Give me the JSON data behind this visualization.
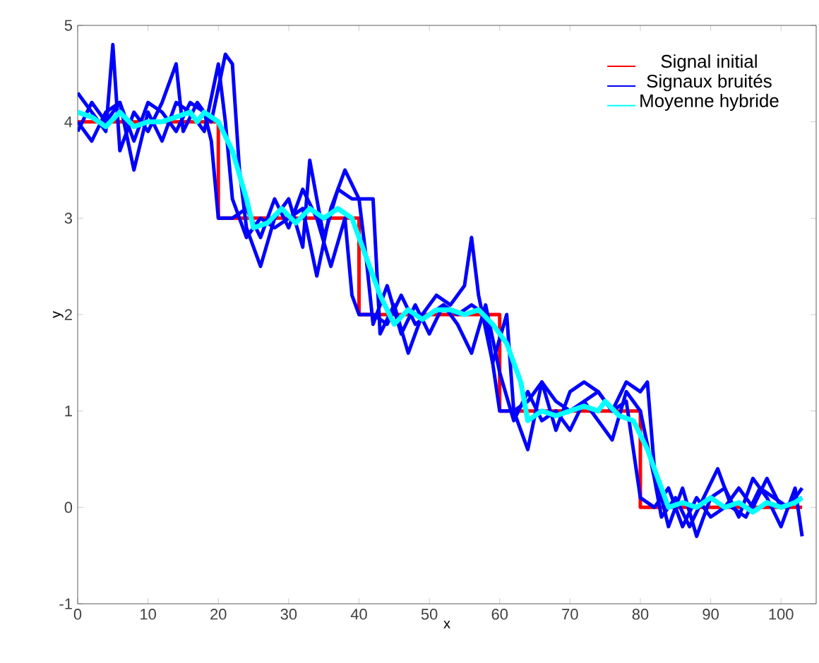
{
  "chart_data": {
    "type": "line",
    "xlabel": "x",
    "ylabel": "y",
    "xlim": [
      0,
      105
    ],
    "ylim": [
      -1,
      5
    ],
    "xticks": [
      0,
      10,
      20,
      30,
      40,
      50,
      60,
      70,
      80,
      90,
      100
    ],
    "yticks": [
      -1,
      0,
      1,
      2,
      3,
      4,
      5
    ],
    "grid": false,
    "legend": "top right",
    "marker": "none",
    "line_style": "solid",
    "series": [
      {
        "name": "Signal initial",
        "color": "#ff0000",
        "x": [
          0,
          20,
          20,
          40,
          40,
          60,
          60,
          80,
          80,
          103
        ],
        "values": [
          4,
          4,
          3,
          3,
          2,
          2,
          1,
          1,
          0,
          0
        ]
      },
      {
        "name": "Signaux bruités",
        "color": "#0000ff",
        "x": [
          0,
          2,
          4,
          5,
          6,
          8,
          10,
          12,
          14,
          15,
          17,
          19,
          21,
          22,
          23,
          24,
          26,
          28,
          30,
          32,
          33,
          35,
          37,
          39,
          40,
          42,
          43,
          45,
          47,
          49,
          51,
          53,
          55,
          56,
          57,
          59,
          61,
          62,
          64,
          66,
          68,
          70,
          72,
          74,
          76,
          78,
          80,
          81,
          82,
          84,
          86,
          88,
          90,
          92,
          94,
          96,
          98,
          100,
          102,
          103
        ],
        "values": [
          4.3,
          4.1,
          3.9,
          4.8,
          3.7,
          4.1,
          3.9,
          4.2,
          4.6,
          3.9,
          4.2,
          4.0,
          4.7,
          4.6,
          3.5,
          2.9,
          2.5,
          3.0,
          3.2,
          2.7,
          3.6,
          2.8,
          3.3,
          3.2,
          3.2,
          3.2,
          1.8,
          2.1,
          1.6,
          2.0,
          2.2,
          2.1,
          2.3,
          2.8,
          2.2,
          1.5,
          2.0,
          1.0,
          0.6,
          1.3,
          0.8,
          1.2,
          1.3,
          1.2,
          1.0,
          1.3,
          1.2,
          1.3,
          0.4,
          -0.2,
          0.2,
          -0.3,
          0.1,
          0.2,
          -0.1,
          0.3,
          0.1,
          -0.2,
          0.2,
          -0.3
        ]
      },
      {
        "color": "#0000ff",
        "x": [
          0,
          2,
          4,
          6,
          8,
          10,
          12,
          14,
          16,
          18,
          20,
          21,
          22,
          24,
          26,
          28,
          30,
          32,
          34,
          36,
          38,
          40,
          41,
          42,
          44,
          46,
          48,
          50,
          52,
          54,
          56,
          58,
          60,
          62,
          64,
          66,
          68,
          70,
          72,
          74,
          76,
          78,
          80,
          82,
          83,
          85,
          87,
          89,
          91,
          93,
          95,
          97,
          99,
          101,
          103
        ],
        "values": [
          3.9,
          4.2,
          4.0,
          4.2,
          3.5,
          4.1,
          3.8,
          4.2,
          4.1,
          3.9,
          4.6,
          4.0,
          3.2,
          2.8,
          3.0,
          2.9,
          3.0,
          3.1,
          2.4,
          3.1,
          3.5,
          3.2,
          2.6,
          1.9,
          2.3,
          1.8,
          2.1,
          1.8,
          2.1,
          1.9,
          1.6,
          2.1,
          1.4,
          0.9,
          1.2,
          0.9,
          1.0,
          0.8,
          1.1,
          0.9,
          0.7,
          1.2,
          1.0,
          0.3,
          -0.1,
          0.1,
          -0.2,
          0.1,
          0.4,
          0.0,
          -0.1,
          0.2,
          0.1,
          0.0,
          0.2
        ]
      },
      {
        "color": "#0000ff",
        "x": [
          0,
          2,
          4,
          6,
          8,
          10,
          12,
          14,
          16,
          18,
          19,
          20,
          22,
          24,
          26,
          28,
          30,
          32,
          34,
          36,
          38,
          39,
          40,
          42,
          44,
          46,
          48,
          50,
          52,
          54,
          56,
          58,
          60,
          62,
          64,
          66,
          68,
          70,
          72,
          74,
          76,
          78,
          80,
          82,
          84,
          86,
          88,
          90,
          92,
          94,
          96,
          98,
          100,
          103
        ],
        "values": [
          4.0,
          3.8,
          4.1,
          4.2,
          3.8,
          4.2,
          4.1,
          3.9,
          4.2,
          4.1,
          3.8,
          3.0,
          3.0,
          3.1,
          2.8,
          3.2,
          2.9,
          3.3,
          3.0,
          2.5,
          3.0,
          2.2,
          2.0,
          2.0,
          1.9,
          2.2,
          1.9,
          2.0,
          2.1,
          2.0,
          2.1,
          2.0,
          1.0,
          1.0,
          1.1,
          1.3,
          1.1,
          1.0,
          1.1,
          1.2,
          1.0,
          1.1,
          0.1,
          0.0,
          0.2,
          -0.2,
          0.1,
          -0.1,
          0.0,
          0.2,
          0.0,
          0.3,
          0.0,
          0.1
        ]
      },
      {
        "name": "Moyenne hybride",
        "color": "#00ffff",
        "x": [
          0,
          2,
          4,
          6,
          8,
          10,
          12,
          14,
          16,
          17,
          18,
          20,
          22,
          24,
          25,
          27,
          29,
          31,
          33,
          35,
          37,
          39,
          41,
          43,
          45,
          47,
          49,
          51,
          53,
          55,
          57,
          59,
          61,
          63,
          64,
          66,
          68,
          70,
          72,
          74,
          75,
          77,
          79,
          81,
          83,
          84,
          86,
          88,
          90,
          92,
          94,
          96,
          98,
          100,
          102,
          103
        ],
        "values": [
          4.1,
          4.05,
          3.95,
          4.1,
          3.95,
          4.0,
          4.0,
          4.05,
          4.1,
          4.0,
          4.1,
          4.0,
          3.7,
          3.2,
          2.9,
          2.95,
          3.1,
          2.95,
          3.1,
          3.0,
          3.1,
          3.0,
          2.6,
          2.2,
          1.9,
          2.05,
          1.95,
          2.05,
          2.05,
          2.0,
          2.05,
          1.9,
          1.7,
          1.3,
          0.9,
          1.0,
          0.95,
          1.0,
          1.05,
          1.0,
          1.1,
          0.95,
          0.9,
          0.6,
          0.2,
          0.0,
          0.05,
          0.0,
          0.1,
          0.0,
          0.05,
          -0.05,
          0.05,
          0.0,
          0.05,
          0.1
        ]
      }
    ]
  }
}
